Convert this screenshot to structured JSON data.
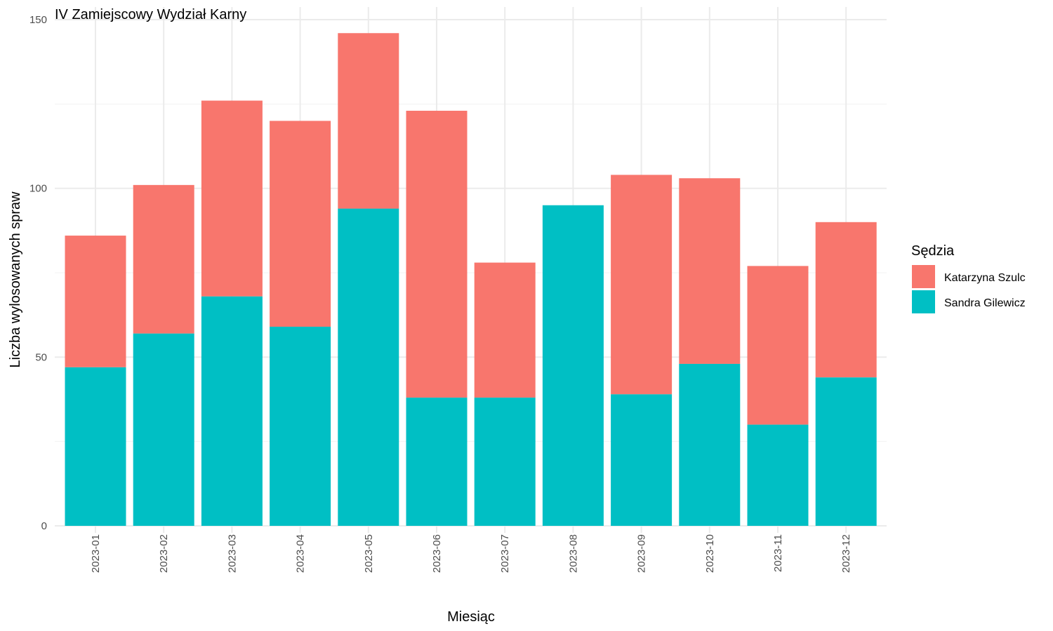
{
  "chart_data": {
    "type": "bar",
    "stacked": true,
    "title": "IV Zamiejscowy Wydział Karny",
    "xlabel": "Miesiąc",
    "ylabel": "Liczba wylosowanych spraw",
    "ylim": [
      0,
      150
    ],
    "yticks": [
      0,
      50,
      100,
      150
    ],
    "grid": true,
    "legend_title": "Sędzia",
    "legend_position": "right",
    "categories": [
      "2023-01",
      "2023-02",
      "2023-03",
      "2023-04",
      "2023-05",
      "2023-06",
      "2023-07",
      "2023-08",
      "2023-09",
      "2023-10",
      "2023-11",
      "2023-12"
    ],
    "series": [
      {
        "name": "Sandra Gilewicz",
        "color": "#00BFC4",
        "values": [
          47,
          57,
          68,
          59,
          94,
          38,
          38,
          95,
          39,
          48,
          30,
          44
        ]
      },
      {
        "name": "Katarzyna Szulc",
        "color": "#F8766D",
        "values": [
          39,
          44,
          58,
          61,
          52,
          85,
          40,
          0,
          65,
          55,
          47,
          46
        ]
      }
    ],
    "legend_order": [
      "Katarzyna Szulc",
      "Sandra Gilewicz"
    ]
  }
}
